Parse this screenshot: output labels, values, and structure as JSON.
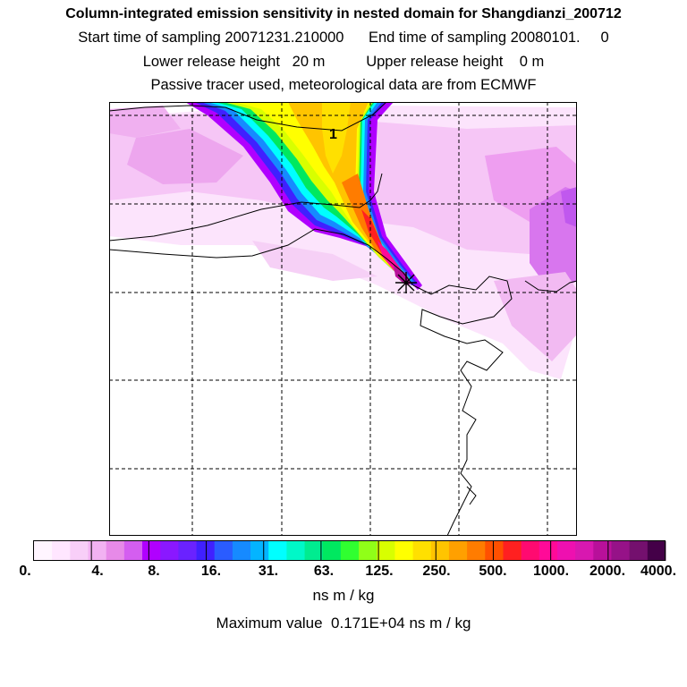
{
  "header": {
    "title": "Column-integrated emission sensitivity in nested domain for Shangdianzi_200712",
    "sampling_line": "Start time of sampling 20071231.210000      End time of sampling 20080101.     0",
    "release_line": "Lower release height   20 m          Upper release height    0 m",
    "tracer_line": "Passive tracer used, meteorological data are from ECMWF"
  },
  "map": {
    "receptor_label": "1",
    "receptor_marker": "asterisk-marker"
  },
  "colorbar": {
    "tick_labels": [
      "0.",
      "4.",
      "8.",
      "16.",
      "31.",
      "63.",
      "125.",
      "250.",
      "500.",
      "1000.",
      "2000.",
      "4000."
    ],
    "colors": [
      "#fff5ff",
      "#ffe6ff",
      "#f8cff8",
      "#f2b2f2",
      "#e78ae8",
      "#d45ef0",
      "#b000ff",
      "#8a18ff",
      "#6a22ff",
      "#4020ff",
      "#2a5cff",
      "#168aff",
      "#04b4ff",
      "#00ffff",
      "#00f8c8",
      "#00ec90",
      "#00e860",
      "#30ff30",
      "#90ff18",
      "#d8ff00",
      "#ffff00",
      "#ffe000",
      "#ffc400",
      "#ffa000",
      "#ff7c00",
      "#ff5000",
      "#ff2020",
      "#ff0a70",
      "#ff0a98",
      "#ee10b0",
      "#d818b0",
      "#b8109a",
      "#961288",
      "#74106e",
      "#440048"
    ],
    "units": "ns m / kg",
    "max_value_text": "Maximum value  0.171E+04 ns m / kg"
  }
}
